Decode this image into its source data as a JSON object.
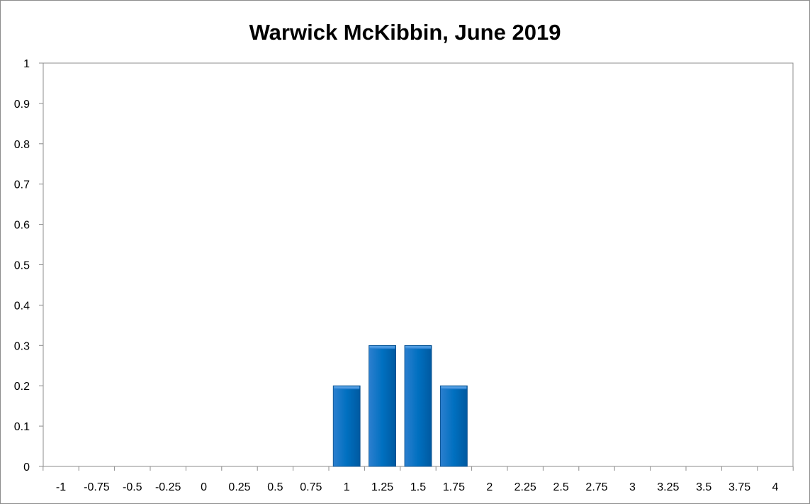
{
  "chart_data": {
    "type": "bar",
    "title": "Warwick McKibbin, June 2019",
    "xlabel": "",
    "ylabel": "",
    "categories": [
      "-1",
      "-0.75",
      "-0.5",
      "-0.25",
      "0",
      "0.25",
      "0.5",
      "0.75",
      "1",
      "1.25",
      "1.5",
      "1.75",
      "2",
      "2.25",
      "2.5",
      "2.75",
      "3",
      "3.25",
      "3.5",
      "3.75",
      "4"
    ],
    "values": [
      0,
      0,
      0,
      0,
      0,
      0,
      0,
      0,
      0.2,
      0.3,
      0.3,
      0.2,
      0,
      0,
      0,
      0,
      0,
      0,
      0,
      0,
      0
    ],
    "y_ticks": [
      "0",
      "0.1",
      "0.2",
      "0.3",
      "0.4",
      "0.5",
      "0.6",
      "0.7",
      "0.8",
      "0.9",
      "1"
    ],
    "ylim": [
      0,
      1
    ],
    "grid": false,
    "legend": "none",
    "bar_color": "#0070c0"
  }
}
